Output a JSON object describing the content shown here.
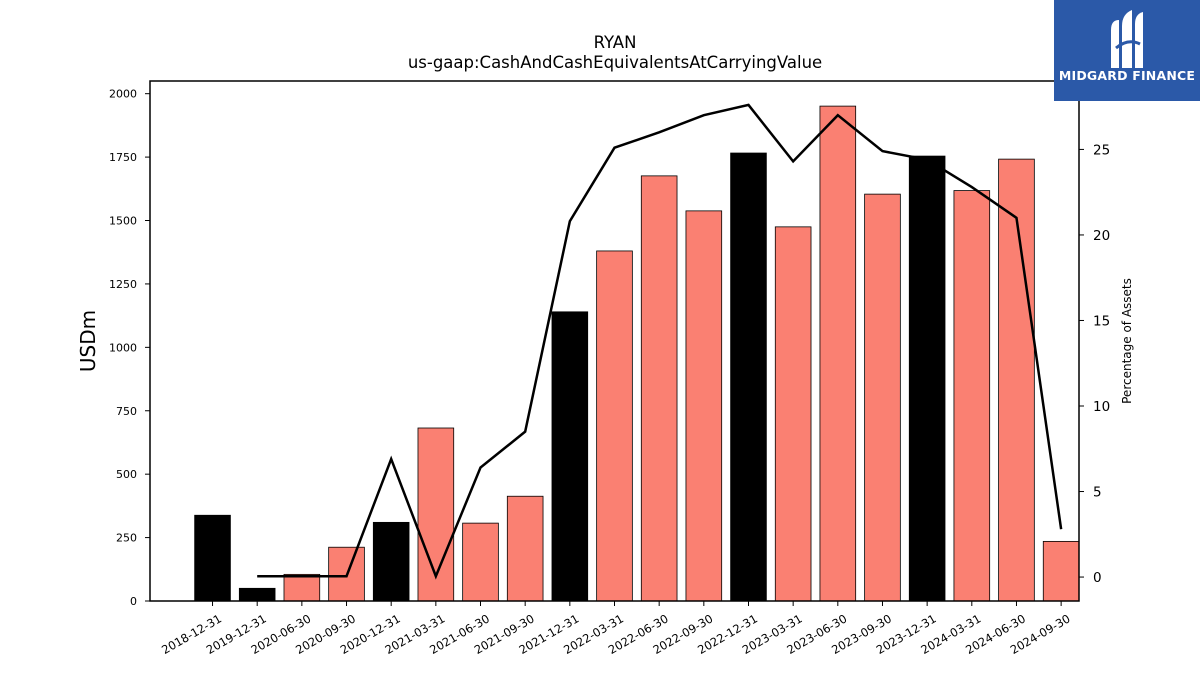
{
  "logo": {
    "text": "MIDGARD FINANCE"
  },
  "chart_data": {
    "type": "bar",
    "title": "RYAN",
    "subtitle": "us-gaap:CashAndCashEquivalentsAtCarryingValue",
    "ylabel": "USDm",
    "y2label": "Percentage of Assets",
    "ylim": [
      0,
      2050
    ],
    "y2lim": [
      -1.4,
      29
    ],
    "yticks": [
      0,
      250,
      500,
      750,
      1000,
      1250,
      1500,
      1750,
      2000
    ],
    "y2ticks": [
      0,
      5,
      10,
      15,
      20,
      25
    ],
    "categories": [
      "2018-12-31",
      "2019-12-31",
      "2020-06-30",
      "2020-09-30",
      "2020-12-31",
      "2021-03-31",
      "2021-06-30",
      "2021-09-30",
      "2021-12-31",
      "2022-03-31",
      "2022-06-30",
      "2022-09-30",
      "2022-12-31",
      "2023-03-31",
      "2023-06-30",
      "2023-09-30",
      "2023-12-31",
      "2024-03-31",
      "2024-06-30",
      "2024-09-30"
    ],
    "bar_colors": [
      "#000000",
      "#000000",
      "#fa8072",
      "#fa8072",
      "#000000",
      "#fa8072",
      "#fa8072",
      "#fa8072",
      "#000000",
      "#fa8072",
      "#fa8072",
      "#fa8072",
      "#000000",
      "#fa8072",
      "#fa8072",
      "#fa8072",
      "#000000",
      "#fa8072",
      "#fa8072",
      "#fa8072"
    ],
    "series": [
      {
        "values": [
          338,
          50,
          105,
          212,
          310,
          682,
          307,
          413,
          1140,
          1380,
          1676,
          1538,
          1766,
          1475,
          1951,
          1604,
          1754,
          1618,
          1742,
          235
        ],
        "color": "#fa8072",
        "axis": "left"
      },
      {
        "values": [
          null,
          0.05,
          0.05,
          0.05,
          6.9,
          0.05,
          6.4,
          8.5,
          20.8,
          25.1,
          26.0,
          27.0,
          27.6,
          24.3,
          27.0,
          24.9,
          24.4,
          22.8,
          21.0,
          2.8
        ],
        "color": "#000000",
        "axis": "right"
      }
    ],
    "grid": false,
    "legend": "none"
  }
}
